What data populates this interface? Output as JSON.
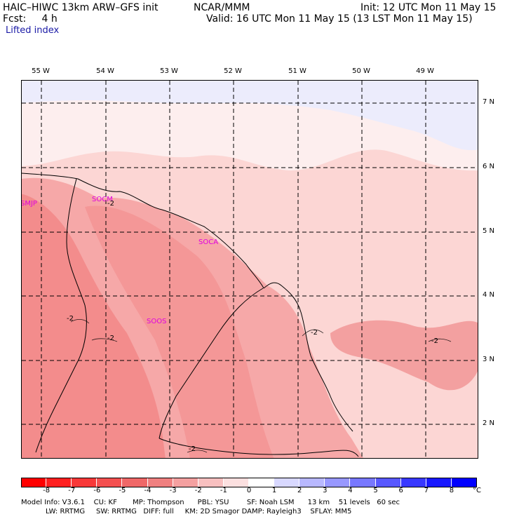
{
  "header": {
    "model": "HAIC–HIWC 13km ARW–GFS init",
    "org": "NCAR/MMM",
    "init": "Init: 12 UTC Mon 11 May 15",
    "fcst": "Fcst:     4 h",
    "valid": "Valid: 16 UTC Mon 11 May 15 (13 LST Mon 11 May 15)",
    "field": "Lifted index"
  },
  "map": {
    "lon_labels": [
      "55 W",
      "54 W",
      "53 W",
      "52 W",
      "51 W",
      "50 W",
      "49 W"
    ],
    "lat_labels": [
      "7 N",
      "6 N",
      "5 N",
      "4 N",
      "3 N",
      "2 N"
    ],
    "stations": [
      "SMJP",
      "SOCM",
      "SOCA",
      "SOOS"
    ],
    "contour_labels": [
      "-2",
      "-2",
      "-2",
      "-2",
      "-2",
      "-2"
    ]
  },
  "colorbar": {
    "levels": [
      "-8",
      "-7",
      "-6",
      "-5",
      "-4",
      "-3",
      "-2",
      "-1",
      "0",
      "1",
      "2",
      "3",
      "4",
      "5",
      "6",
      "7",
      "8"
    ],
    "unit": "°C",
    "colors": [
      "#ff0000",
      "#ff2020",
      "#f83838",
      "#f45050",
      "#f06868",
      "#f08080",
      "#f4a0a0",
      "#f8c0c0",
      "#fce0e0",
      "#ffffff",
      "#d8d8ff",
      "#b8b8ff",
      "#9898ff",
      "#7878ff",
      "#5858ff",
      "#3838ff",
      "#1818ff",
      "#0000ff"
    ]
  },
  "footer": {
    "line1": "Model Info: V3.6.1    CU: KF       MP: Thompson      PBL: YSU        SF: Noah LSM      13 km    51 levels   60 sec",
    "line2": "           LW: RRTMG     SW: RRTMG   DIFF: full     KM: 2D Smagor DAMP: Rayleigh3    SFLAY: MM5"
  }
}
